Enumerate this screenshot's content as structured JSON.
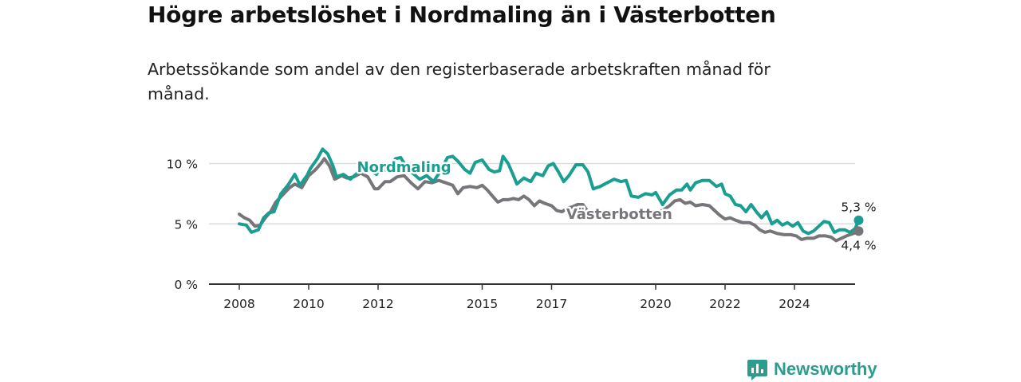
{
  "title": "Högre arbetslöshet i Nordmaling än i Västerbotten",
  "subtitle": "Arbetssökande som andel av den registerbaserade arbetskraften månad för månad.",
  "brand": "Newsworthy",
  "colors": {
    "nordmaling": "#1a9e92",
    "vasterbotten": "#76757a",
    "grid": "#dcdcdc",
    "axis": "#333333",
    "brand": "#2a9d8f"
  },
  "chart_data": {
    "type": "line",
    "title": "Högre arbetslöshet i Nordmaling än i Västerbotten",
    "subtitle": "Arbetssökande som andel av den registerbaserade arbetskraften månad för månad.",
    "xlabel": "",
    "ylabel": "",
    "ylim": [
      0,
      13
    ],
    "xlim": [
      2008.0,
      2025.9
    ],
    "x_ticks": [
      {
        "value": 2008,
        "label": "2008"
      },
      {
        "value": 2010,
        "label": "2010"
      },
      {
        "value": 2012,
        "label": "2012"
      },
      {
        "value": 2015,
        "label": "2015"
      },
      {
        "value": 2017,
        "label": "2017"
      },
      {
        "value": 2020,
        "label": "2020"
      },
      {
        "value": 2022,
        "label": "2022"
      },
      {
        "value": 2024,
        "label": "2024"
      }
    ],
    "y_ticks": [
      {
        "value": 0,
        "label": "0 %"
      },
      {
        "value": 5,
        "label": "5 %"
      },
      {
        "value": 10,
        "label": "10 %"
      }
    ],
    "grid": true,
    "legend": "inline labels",
    "series": [
      {
        "name": "Nordmaling",
        "label_at": [
          2012.75,
          9.3
        ],
        "end_label": "5,3 %",
        "end_value": 5.3,
        "points": [
          [
            2008.0,
            5.0
          ],
          [
            2008.2,
            4.9
          ],
          [
            2008.35,
            4.3
          ],
          [
            2008.55,
            4.5
          ],
          [
            2008.7,
            5.5
          ],
          [
            2008.85,
            5.9
          ],
          [
            2009.0,
            6.0
          ],
          [
            2009.2,
            7.5
          ],
          [
            2009.4,
            8.2
          ],
          [
            2009.6,
            9.1
          ],
          [
            2009.75,
            8.2
          ],
          [
            2009.95,
            9.0
          ],
          [
            2010.05,
            9.6
          ],
          [
            2010.25,
            10.4
          ],
          [
            2010.4,
            11.2
          ],
          [
            2010.55,
            10.8
          ],
          [
            2010.7,
            9.8
          ],
          [
            2010.8,
            8.9
          ],
          [
            2011.0,
            9.1
          ],
          [
            2011.2,
            8.7
          ],
          [
            2011.4,
            9.2
          ],
          [
            2011.5,
            10.0
          ],
          [
            2011.65,
            9.3
          ],
          [
            2011.8,
            9.4
          ],
          [
            2011.95,
            9.1
          ],
          [
            2012.1,
            9.7
          ],
          [
            2012.3,
            9.3
          ],
          [
            2012.5,
            10.4
          ],
          [
            2012.65,
            10.5
          ],
          [
            2012.8,
            9.8
          ],
          [
            2013.0,
            9.2
          ],
          [
            2013.2,
            8.7
          ],
          [
            2013.4,
            9.0
          ],
          [
            2013.6,
            8.5
          ],
          [
            2013.8,
            9.4
          ],
          [
            2014.0,
            10.5
          ],
          [
            2014.15,
            10.6
          ],
          [
            2014.3,
            10.2
          ],
          [
            2014.5,
            9.5
          ],
          [
            2014.65,
            9.2
          ],
          [
            2014.8,
            10.1
          ],
          [
            2015.0,
            10.3
          ],
          [
            2015.2,
            9.5
          ],
          [
            2015.35,
            9.3
          ],
          [
            2015.5,
            9.4
          ],
          [
            2015.6,
            10.6
          ],
          [
            2015.75,
            10.0
          ],
          [
            2015.9,
            9.0
          ],
          [
            2016.0,
            8.3
          ],
          [
            2016.2,
            8.8
          ],
          [
            2016.4,
            8.5
          ],
          [
            2016.55,
            9.2
          ],
          [
            2016.75,
            9.0
          ],
          [
            2016.9,
            9.8
          ],
          [
            2017.05,
            10.0
          ],
          [
            2017.2,
            9.3
          ],
          [
            2017.35,
            8.5
          ],
          [
            2017.5,
            9.0
          ],
          [
            2017.7,
            9.9
          ],
          [
            2017.9,
            9.9
          ],
          [
            2018.05,
            9.3
          ],
          [
            2018.2,
            7.9
          ],
          [
            2018.4,
            8.1
          ],
          [
            2018.6,
            8.4
          ],
          [
            2018.8,
            8.7
          ],
          [
            2019.0,
            8.5
          ],
          [
            2019.15,
            8.6
          ],
          [
            2019.3,
            7.3
          ],
          [
            2019.5,
            7.2
          ],
          [
            2019.7,
            7.5
          ],
          [
            2019.9,
            7.4
          ],
          [
            2020.0,
            7.6
          ],
          [
            2020.2,
            6.6
          ],
          [
            2020.4,
            7.4
          ],
          [
            2020.6,
            7.8
          ],
          [
            2020.75,
            7.8
          ],
          [
            2020.9,
            8.3
          ],
          [
            2021.0,
            7.8
          ],
          [
            2021.15,
            8.4
          ],
          [
            2021.35,
            8.6
          ],
          [
            2021.55,
            8.6
          ],
          [
            2021.75,
            8.1
          ],
          [
            2021.9,
            8.3
          ],
          [
            2022.0,
            7.5
          ],
          [
            2022.15,
            7.3
          ],
          [
            2022.3,
            6.6
          ],
          [
            2022.45,
            6.5
          ],
          [
            2022.6,
            6.0
          ],
          [
            2022.75,
            6.6
          ],
          [
            2022.9,
            6.0
          ],
          [
            2023.05,
            5.5
          ],
          [
            2023.2,
            6.0
          ],
          [
            2023.35,
            5.0
          ],
          [
            2023.5,
            5.3
          ],
          [
            2023.65,
            4.9
          ],
          [
            2023.8,
            5.1
          ],
          [
            2023.95,
            4.8
          ],
          [
            2024.1,
            5.1
          ],
          [
            2024.25,
            4.4
          ],
          [
            2024.4,
            4.2
          ],
          [
            2024.55,
            4.4
          ],
          [
            2024.7,
            4.8
          ],
          [
            2024.85,
            5.2
          ],
          [
            2025.0,
            5.1
          ],
          [
            2025.15,
            4.3
          ],
          [
            2025.3,
            4.5
          ],
          [
            2025.45,
            4.5
          ],
          [
            2025.6,
            4.3
          ],
          [
            2025.75,
            4.6
          ],
          [
            2025.85,
            5.3
          ]
        ]
      },
      {
        "name": "Västerbotten",
        "label_at": [
          2018.95,
          5.4
        ],
        "end_label": "4,4 %",
        "end_value": 4.4,
        "points": [
          [
            2008.0,
            5.8
          ],
          [
            2008.15,
            5.5
          ],
          [
            2008.3,
            5.3
          ],
          [
            2008.45,
            4.8
          ],
          [
            2008.6,
            4.9
          ],
          [
            2008.75,
            5.5
          ],
          [
            2008.9,
            6.0
          ],
          [
            2009.05,
            6.8
          ],
          [
            2009.25,
            7.4
          ],
          [
            2009.45,
            8.0
          ],
          [
            2009.6,
            8.3
          ],
          [
            2009.8,
            8.0
          ],
          [
            2010.0,
            9.0
          ],
          [
            2010.2,
            9.5
          ],
          [
            2010.35,
            10.0
          ],
          [
            2010.45,
            10.4
          ],
          [
            2010.6,
            9.8
          ],
          [
            2010.75,
            8.7
          ],
          [
            2010.95,
            9.0
          ],
          [
            2011.1,
            8.8
          ],
          [
            2011.3,
            8.9
          ],
          [
            2011.5,
            9.2
          ],
          [
            2011.7,
            8.9
          ],
          [
            2011.9,
            7.9
          ],
          [
            2012.0,
            7.9
          ],
          [
            2012.2,
            8.5
          ],
          [
            2012.35,
            8.5
          ],
          [
            2012.55,
            8.9
          ],
          [
            2012.75,
            9.0
          ],
          [
            2012.95,
            8.4
          ],
          [
            2013.15,
            7.9
          ],
          [
            2013.35,
            8.5
          ],
          [
            2013.55,
            8.4
          ],
          [
            2013.75,
            8.6
          ],
          [
            2013.95,
            8.4
          ],
          [
            2014.15,
            8.2
          ],
          [
            2014.3,
            7.5
          ],
          [
            2014.45,
            8.0
          ],
          [
            2014.65,
            8.1
          ],
          [
            2014.85,
            8.0
          ],
          [
            2015.0,
            8.2
          ],
          [
            2015.15,
            7.8
          ],
          [
            2015.3,
            7.3
          ],
          [
            2015.45,
            6.8
          ],
          [
            2015.6,
            7.0
          ],
          [
            2015.75,
            7.0
          ],
          [
            2015.9,
            7.1
          ],
          [
            2016.05,
            7.0
          ],
          [
            2016.2,
            7.3
          ],
          [
            2016.35,
            7.0
          ],
          [
            2016.5,
            6.5
          ],
          [
            2016.65,
            6.9
          ],
          [
            2016.8,
            6.7
          ],
          [
            2017.0,
            6.5
          ],
          [
            2017.15,
            6.1
          ],
          [
            2017.3,
            6.0
          ],
          [
            2017.45,
            6.3
          ],
          [
            2017.6,
            6.4
          ],
          [
            2017.75,
            6.6
          ],
          [
            2017.9,
            6.6
          ],
          [
            2018.05,
            6.0
          ],
          [
            2018.2,
            5.8
          ],
          [
            2018.4,
            6.0
          ],
          [
            2018.6,
            6.1
          ],
          [
            2018.8,
            5.9
          ],
          [
            2019.0,
            5.8
          ],
          [
            2019.3,
            5.7
          ],
          [
            2019.6,
            5.8
          ],
          [
            2019.9,
            5.9
          ],
          [
            2020.2,
            6.1
          ],
          [
            2020.4,
            6.5
          ],
          [
            2020.55,
            6.9
          ],
          [
            2020.7,
            7.0
          ],
          [
            2020.85,
            6.7
          ],
          [
            2021.0,
            6.8
          ],
          [
            2021.15,
            6.5
          ],
          [
            2021.35,
            6.6
          ],
          [
            2021.55,
            6.5
          ],
          [
            2021.7,
            6.1
          ],
          [
            2021.85,
            5.7
          ],
          [
            2022.0,
            5.4
          ],
          [
            2022.15,
            5.5
          ],
          [
            2022.3,
            5.3
          ],
          [
            2022.5,
            5.1
          ],
          [
            2022.7,
            5.1
          ],
          [
            2022.85,
            4.9
          ],
          [
            2023.0,
            4.5
          ],
          [
            2023.15,
            4.3
          ],
          [
            2023.3,
            4.4
          ],
          [
            2023.5,
            4.2
          ],
          [
            2023.7,
            4.1
          ],
          [
            2023.9,
            4.1
          ],
          [
            2024.05,
            4.0
          ],
          [
            2024.2,
            3.7
          ],
          [
            2024.35,
            3.8
          ],
          [
            2024.55,
            3.8
          ],
          [
            2024.7,
            4.0
          ],
          [
            2024.9,
            4.0
          ],
          [
            2025.05,
            3.9
          ],
          [
            2025.2,
            3.6
          ],
          [
            2025.35,
            3.8
          ],
          [
            2025.5,
            4.0
          ],
          [
            2025.7,
            4.2
          ],
          [
            2025.85,
            4.4
          ]
        ]
      }
    ]
  }
}
